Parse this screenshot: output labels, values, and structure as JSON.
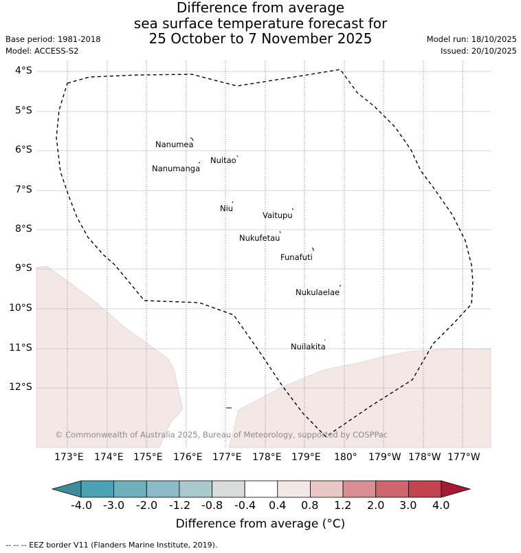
{
  "title": {
    "line1": "Difference from average",
    "line2": "sea surface temperature forecast for",
    "line3": "25 October to 7 November 2025"
  },
  "meta": {
    "base_period": "Base period: 1981-2018",
    "model": "Model: ACCESS-S2",
    "model_run": "Model run: 18/10/2025",
    "issued": "Issued: 20/10/2025"
  },
  "map": {
    "lat_labels": [
      "4°S",
      "5°S",
      "6°S",
      "7°S",
      "8°S",
      "9°S",
      "10°S",
      "11°S",
      "12°S"
    ],
    "lon_labels": [
      "173°E",
      "174°E",
      "175°E",
      "176°E",
      "177°E",
      "178°E",
      "179°E",
      "180°",
      "179°W",
      "178°W",
      "177°W"
    ],
    "islands": [
      "Nanumea",
      "Nuitao",
      "Nanumanga",
      "Niu",
      "Vaitupu",
      "Nukufetau",
      "Funafuti",
      "Nukulaelae",
      "Nuilakita"
    ],
    "copyright": "© Commonwealth of Australia 2025, Bureau of Meteorology, supported by COSPPac",
    "shading_color": "#f4e8e6",
    "eez_line_style": "dashed"
  },
  "colorbar": {
    "ticks": [
      "-4.0",
      "-3.0",
      "-2.0",
      "-1.2",
      "-0.8",
      "-0.4",
      "0.4",
      "0.8",
      "1.2",
      "2.0",
      "3.0",
      "4.0"
    ],
    "colors": [
      "#4aa3b4",
      "#6eb0bc",
      "#8bbcc5",
      "#a9c9cc",
      "#d8dcdc",
      "#ffffff",
      "#f4e8e6",
      "#e8c7c4",
      "#d98e93",
      "#cf666f",
      "#c2444f"
    ],
    "under_color": "#3c8c99",
    "over_color": "#a51b36",
    "label": "Difference from average (°C)"
  },
  "footer": {
    "legend": "-- -- -- EEZ border V11 (Flanders Marine Institute, 2019)."
  }
}
